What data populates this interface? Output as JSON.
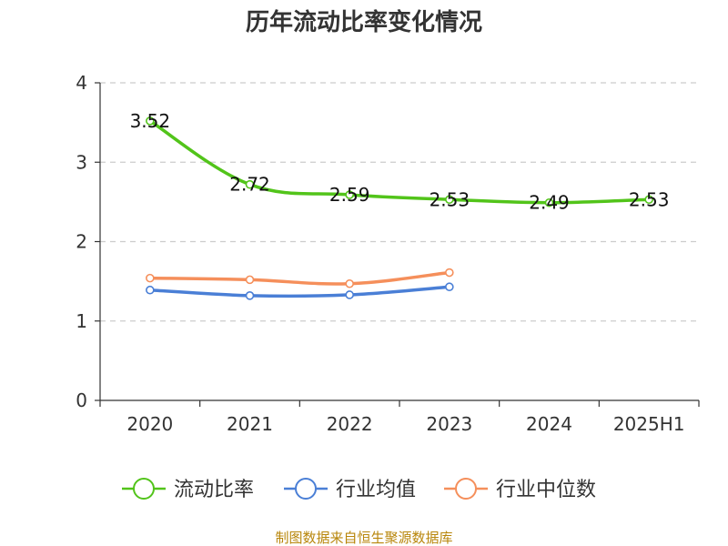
{
  "chart_data": {
    "type": "line",
    "title": "历年流动比率变化情况",
    "categories": [
      "2020",
      "2021",
      "2022",
      "2023",
      "2024",
      "2025H1"
    ],
    "ylim": [
      0,
      4
    ],
    "yticks": [
      0,
      1,
      2,
      3,
      4
    ],
    "grid": true,
    "legend_position": "bottom",
    "series": [
      {
        "name": "流动比率",
        "color": "#52c41a",
        "values": [
          3.52,
          2.72,
          2.59,
          2.53,
          2.49,
          2.53
        ],
        "labels": [
          "3.52",
          "2.72",
          "2.59",
          "2.53",
          "2.49",
          "2.53"
        ]
      },
      {
        "name": "行业均值",
        "color": "#4a7fd6",
        "values": [
          1.39,
          1.32,
          1.33,
          1.43,
          null,
          null
        ]
      },
      {
        "name": "行业中位数",
        "color": "#f58f5b",
        "values": [
          1.54,
          1.52,
          1.47,
          1.61,
          null,
          null
        ]
      }
    ]
  },
  "footer": {
    "source": "制图数据来自恒生聚源数据库"
  }
}
